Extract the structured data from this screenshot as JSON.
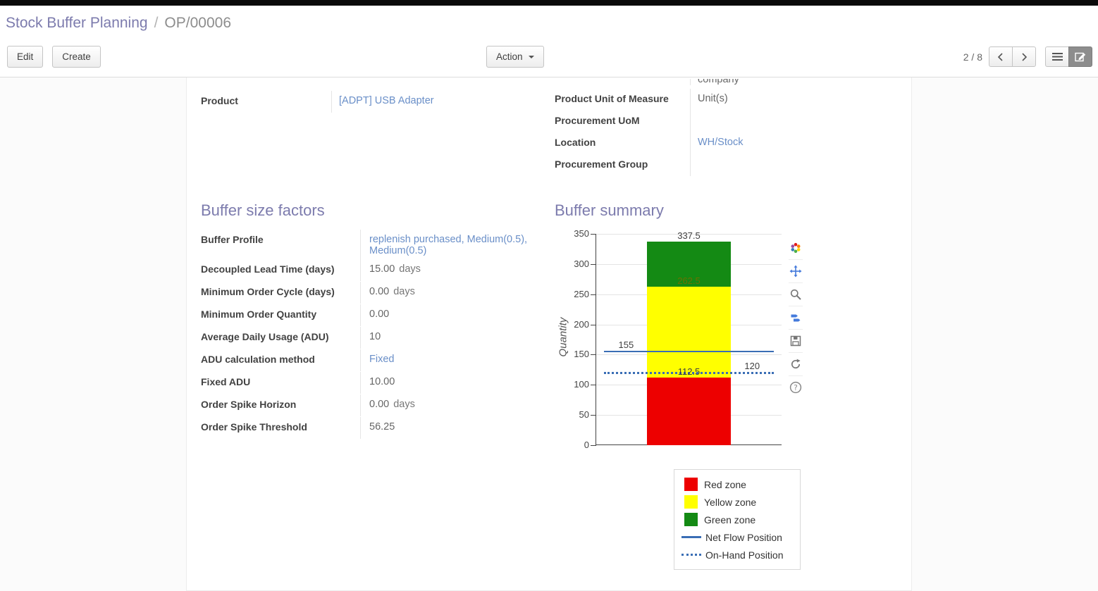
{
  "breadcrumb": {
    "primary": "Stock Buffer Planning",
    "separator": "/",
    "current": "OP/00006"
  },
  "control_panel": {
    "edit_label": "Edit",
    "create_label": "Create",
    "action_label": "Action",
    "pager_text": "2 / 8"
  },
  "icons": {
    "pager_prev": "chevron-left-icon",
    "pager_next": "chevron-right-icon",
    "view_list": "list-icon",
    "view_form": "form-icon",
    "action_caret": "caret-down-icon",
    "chart_toolbar": [
      "plotly-logo-icon",
      "pan-icon",
      "zoom-icon",
      "hover-compare-icon",
      "save-icon",
      "reset-axes-icon",
      "help-icon"
    ]
  },
  "form": {
    "left_fields": [
      {
        "label": "Product",
        "value": "[ADPT] USB Adapter"
      }
    ],
    "right_fields": [
      {
        "label": "",
        "value": "company"
      },
      {
        "label": "Product Unit of Measure",
        "value": "Unit(s)"
      },
      {
        "label": "Procurement UoM",
        "value": ""
      },
      {
        "label": "Location",
        "value": "WH/Stock"
      },
      {
        "label": "Procurement Group",
        "value": ""
      }
    ],
    "buffer_factors": {
      "title": "Buffer size factors",
      "fields": [
        {
          "label": "Buffer Profile",
          "value": "replenish purchased, Medium(0.5), Medium(0.5)"
        },
        {
          "label": "Decoupled Lead Time (days)",
          "value": "15.00",
          "suffix": "days"
        },
        {
          "label": "Minimum Order Cycle (days)",
          "value": "0.00",
          "suffix": "days"
        },
        {
          "label": "Minimum Order Quantity",
          "value": "0.00"
        },
        {
          "label": "Average Daily Usage (ADU)",
          "value": "10"
        },
        {
          "label": "ADU calculation method",
          "value": "Fixed"
        },
        {
          "label": "Fixed ADU",
          "value": "10.00"
        },
        {
          "label": "Order Spike Horizon",
          "value": "0.00",
          "suffix": "days"
        },
        {
          "label": "Order Spike Threshold",
          "value": "56.25"
        }
      ]
    },
    "buffer_summary": {
      "title": "Buffer summary"
    }
  },
  "chart_data": {
    "type": "bar",
    "title": "",
    "ylabel": "Quantity",
    "ylim": [
      0,
      350
    ],
    "yticks": [
      0,
      50,
      100,
      150,
      200,
      250,
      300,
      350
    ],
    "grid": "horizontal",
    "legend_position": "bottom-right",
    "bar_center_frac": 0.5,
    "bar_width_frac": 0.45,
    "zones": [
      {
        "name": "Red zone",
        "from": 0,
        "to": 112.5,
        "color": "#ed0000"
      },
      {
        "name": "Yellow zone",
        "from": 112.5,
        "to": 262.5,
        "color": "#ffff00"
      },
      {
        "name": "Green zone",
        "from": 262.5,
        "to": 337.5,
        "color": "#148a14"
      }
    ],
    "lines": [
      {
        "name": "Net Flow Position",
        "value": 155,
        "style": "solid",
        "color": "#3a6eb5",
        "label": "155",
        "label_pos": "left"
      },
      {
        "name": "On-Hand Position",
        "value": 120,
        "style": "dotted",
        "color": "#3a6eb5",
        "label": "120",
        "label_pos": "right"
      }
    ],
    "annotations": [
      {
        "text": "337.5",
        "value": 337.5,
        "color": "#3f3f3f"
      },
      {
        "text": "262.5",
        "value": 262.5,
        "color": "#6f6f00"
      },
      {
        "text": "112.5",
        "value": 112.5,
        "color": "#3f3f3f"
      }
    ],
    "legend": [
      {
        "label": "Red zone",
        "swatch": "square",
        "color": "#ed0000"
      },
      {
        "label": "Yellow zone",
        "swatch": "square",
        "color": "#ffff00"
      },
      {
        "label": "Green zone",
        "swatch": "square",
        "color": "#148a14"
      },
      {
        "label": "Net Flow Position",
        "swatch": "line",
        "color": "#3a6eb5"
      },
      {
        "label": "On-Hand Position",
        "swatch": "dotted",
        "color": "#3a6eb5"
      }
    ]
  }
}
